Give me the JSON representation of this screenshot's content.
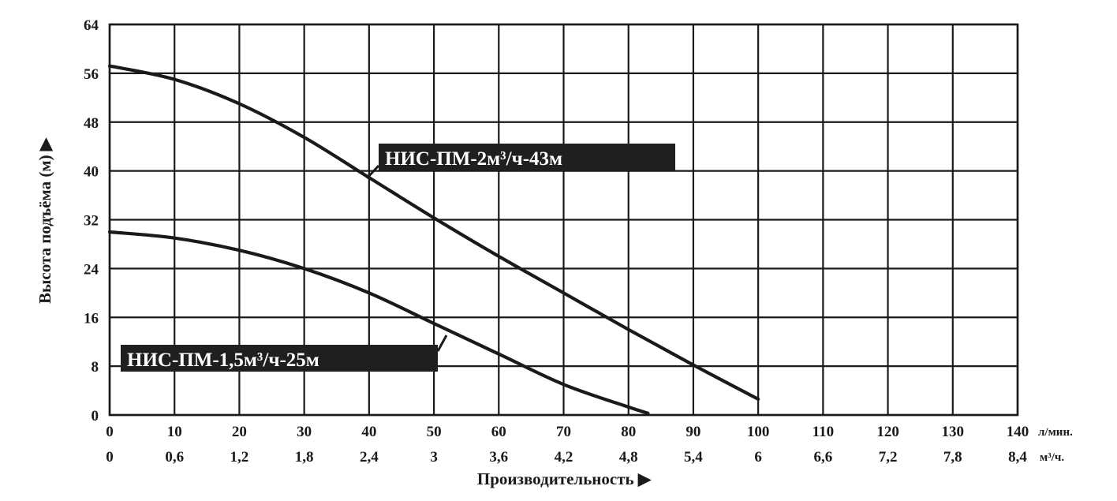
{
  "chart_data": {
    "type": "line",
    "ylabel": "Высота подъёма (м) ▶",
    "xlabel": "Производительность ▶",
    "x_unit_primary": "л/мин.",
    "x_unit_secondary": "м³/ч.",
    "xlim": [
      0,
      140
    ],
    "ylim": [
      0,
      64
    ],
    "grid": true,
    "x_ticks": [
      "0",
      "10",
      "20",
      "30",
      "40",
      "50",
      "60",
      "70",
      "80",
      "90",
      "100",
      "110",
      "120",
      "130",
      "140"
    ],
    "x_ticks_secondary": [
      "0",
      "0,6",
      "1,2",
      "1,8",
      "2,4",
      "3",
      "3,6",
      "4,2",
      "4,8",
      "5,4",
      "6",
      "6,6",
      "7,2",
      "7,8",
      "8,4"
    ],
    "y_ticks": [
      "0",
      "8",
      "16",
      "24",
      "32",
      "40",
      "48",
      "56",
      "64"
    ],
    "series": [
      {
        "name": "НИС-ПМ-2м³/ч-43м",
        "color": "#1a1a1a",
        "points": [
          [
            0,
            57.2
          ],
          [
            10,
            55
          ],
          [
            20,
            51
          ],
          [
            30,
            45.5
          ],
          [
            40,
            38.9
          ],
          [
            50,
            32.3
          ],
          [
            60,
            26
          ],
          [
            70,
            20
          ],
          [
            80,
            14
          ],
          [
            90,
            8.2
          ],
          [
            100,
            2.6
          ]
        ]
      },
      {
        "name": "НИС-ПМ-1,5м³/ч-25м",
        "color": "#1a1a1a",
        "points": [
          [
            0,
            30
          ],
          [
            10,
            29
          ],
          [
            20,
            27
          ],
          [
            30,
            24
          ],
          [
            40,
            20
          ],
          [
            50,
            15
          ],
          [
            60,
            10
          ],
          [
            70,
            5
          ],
          [
            80,
            1.3
          ],
          [
            83,
            0.3
          ]
        ]
      }
    ],
    "callouts": [
      {
        "series": 0,
        "text": "НИС-ПМ-2м³/ч-43м"
      },
      {
        "series": 1,
        "text": "НИС-ПМ-1,5м³/ч-25м"
      }
    ]
  }
}
